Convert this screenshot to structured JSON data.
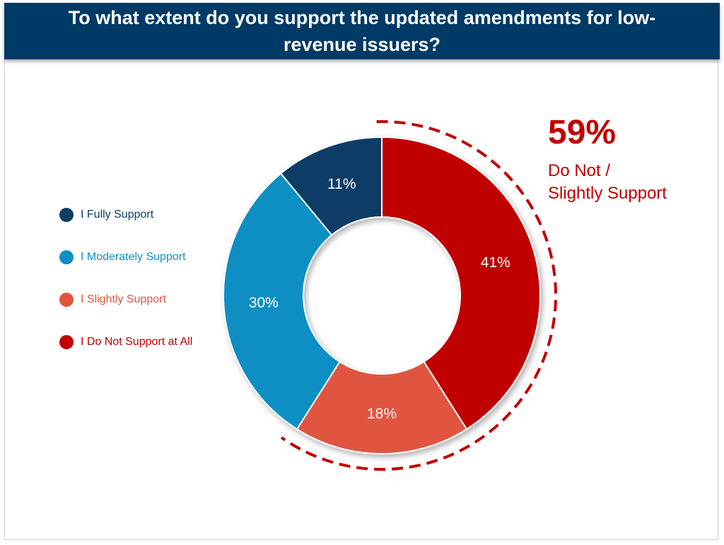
{
  "chart_data": {
    "type": "pie",
    "variant": "donut",
    "title": "To what extent do you support the updated amendments for low-revenue issuers?",
    "categories": [
      "I Fully Support",
      "I Moderately Support",
      "I Slightly Support",
      "I Do Not Support at All"
    ],
    "values": [
      11,
      30,
      18,
      41
    ],
    "value_labels": [
      "11%",
      "30%",
      "18%",
      "41%"
    ],
    "colors": [
      "#0d3c66",
      "#0f8fc4",
      "#e05540",
      "#c00000"
    ],
    "legend_position": "left",
    "callout": {
      "value": "59%",
      "label_line1": "Do Not /",
      "label_line2": "Slightly Support",
      "color": "#c00000",
      "covers": [
        "I Slightly Support",
        "I Do Not Support at All"
      ]
    }
  },
  "legend": {
    "items": [
      {
        "label": "I Fully Support",
        "color": "#0d3c66"
      },
      {
        "label": "I Moderately Support",
        "color": "#0f8fc4"
      },
      {
        "label": "I Slightly Support",
        "color": "#e05540"
      },
      {
        "label": "I Do Not Support at All",
        "color": "#c00000"
      }
    ]
  }
}
